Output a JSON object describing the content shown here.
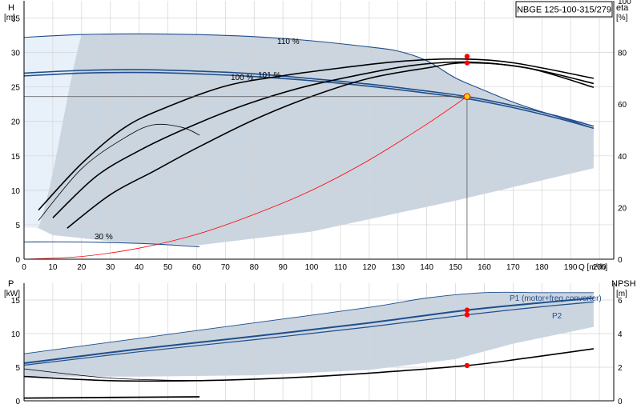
{
  "model": "NBGE 125-100-315/279",
  "chart_data": [
    {
      "type": "line",
      "panel": "head",
      "xlabel": "Q [m³/h]",
      "xlim": [
        0,
        205
      ],
      "xticks": [
        0,
        10,
        20,
        30,
        40,
        50,
        60,
        70,
        80,
        90,
        100,
        110,
        120,
        130,
        140,
        150,
        160,
        170,
        180,
        190,
        200
      ],
      "ylabel_left": "H",
      "ylabel_left_unit": "[m]",
      "ylim_left": [
        0,
        37.5
      ],
      "yticks_left": [
        0,
        5,
        10,
        15,
        20,
        25,
        30,
        35
      ],
      "ylabel_right": "eta",
      "ylabel_right_unit": "[%]",
      "ylim_right": [
        0,
        100
      ],
      "yticks_right": [
        0,
        20,
        40,
        60,
        80,
        100
      ],
      "grid": true,
      "series": [
        {
          "name": "110 %",
          "role": "head-curve",
          "x": [
            0,
            20,
            40,
            60,
            80,
            100,
            120,
            130,
            140,
            150,
            160,
            170,
            180,
            190,
            198
          ],
          "y": [
            32.2,
            32.6,
            32.7,
            32.6,
            32.3,
            31.7,
            30.8,
            30.2,
            28.8,
            26.3,
            24.5,
            22.8,
            21.4,
            20.1,
            19.0
          ]
        },
        {
          "name": "101 %",
          "role": "head-curve",
          "x": [
            0,
            20,
            40,
            60,
            80,
            100,
            120,
            140,
            154,
            170,
            185,
            198
          ],
          "y": [
            27.0,
            27.4,
            27.5,
            27.3,
            26.9,
            26.2,
            25.4,
            24.4,
            23.6,
            22.3,
            20.8,
            19.3
          ]
        },
        {
          "name": "100 %",
          "role": "head-curve",
          "x": [
            0,
            20,
            40,
            60,
            80,
            100,
            120,
            140,
            154,
            170,
            185,
            198
          ],
          "y": [
            26.6,
            27.0,
            27.1,
            26.9,
            26.5,
            25.9,
            25.1,
            24.1,
            23.3,
            22.0,
            20.5,
            19.0
          ]
        },
        {
          "name": "30 %",
          "role": "head-curve",
          "x": [
            0,
            20,
            40,
            50,
            61
          ],
          "y": [
            2.5,
            2.5,
            2.3,
            2.1,
            1.8
          ]
        },
        {
          "name": "",
          "role": "eta-curve",
          "x": [
            5,
            20,
            35,
            50,
            70,
            90,
            110,
            130,
            150,
            170,
            198
          ],
          "y": [
            19,
            37,
            51,
            59,
            67,
            71,
            74,
            76.5,
            77.5,
            76,
            70
          ]
        },
        {
          "name": "",
          "role": "eta-curve",
          "x": [
            10,
            25,
            40,
            55,
            75,
            95,
            115,
            135,
            154,
            175,
            198
          ],
          "y": [
            16,
            32,
            42,
            50,
            59,
            66,
            71,
            75,
            76.3,
            74,
            68
          ]
        },
        {
          "name": "",
          "role": "eta-curve",
          "x": [
            15,
            30,
            45,
            60,
            80,
            100,
            120,
            140,
            154,
            175,
            198
          ],
          "y": [
            12,
            25,
            34,
            43,
            54,
            63,
            70,
            74,
            76,
            74,
            66.5
          ]
        },
        {
          "name": "",
          "role": "eta-curve",
          "x": [
            5,
            20,
            35,
            45,
            55,
            61
          ],
          "y": [
            15,
            35,
            47,
            52,
            51,
            48
          ]
        },
        {
          "name": "",
          "role": "system-curve",
          "x": [
            0,
            20,
            40,
            60,
            80,
            100,
            120,
            140,
            154
          ],
          "y": [
            0.0,
            0.4,
            1.6,
            3.6,
            6.5,
            10.0,
            14.4,
            19.6,
            23.6
          ]
        }
      ],
      "duty_point": {
        "q": 154,
        "h": 23.6
      },
      "markers_eta": [
        {
          "q": 154,
          "eta": 78.5
        },
        {
          "q": 154,
          "eta": 76.0
        }
      ],
      "labels": [
        "110 %",
        "100 %",
        "101 %",
        "30 %"
      ]
    },
    {
      "type": "line",
      "panel": "power",
      "xlim": [
        0,
        205
      ],
      "ylabel_left": "P",
      "ylabel_left_unit": "[kW]",
      "ylim_left": [
        0,
        17.5
      ],
      "yticks_left": [
        0,
        5,
        10,
        15
      ],
      "ylabel_right": "NPSH",
      "ylabel_right_unit": "[m]",
      "ylim_right": [
        0,
        7
      ],
      "yticks_right": [
        0,
        2,
        4,
        6
      ],
      "grid": true,
      "series": [
        {
          "name": "P1 (motor+freq.converter)",
          "role": "power-curve",
          "x": [
            0,
            40,
            80,
            120,
            154,
            180,
            198
          ],
          "y": [
            5.6,
            7.7,
            9.6,
            11.6,
            13.5,
            14.6,
            15.3
          ]
        },
        {
          "name": "P2",
          "role": "power-curve",
          "x": [
            0,
            40,
            80,
            120,
            154,
            180,
            198
          ],
          "y": [
            5.3,
            7.3,
            9.1,
            11.0,
            12.8,
            14.0,
            14.7
          ]
        },
        {
          "name": "",
          "role": "power-curve-upper",
          "x": [
            0,
            40,
            80,
            120,
            140,
            160,
            180,
            198
          ],
          "y": [
            7.0,
            9.3,
            11.6,
            13.9,
            15.3,
            16.1,
            16.1,
            16.1
          ]
        },
        {
          "name": "",
          "role": "power-curve-30",
          "x": [
            0,
            30,
            61
          ],
          "y": [
            0.4,
            0.5,
            0.6
          ]
        },
        {
          "name": "",
          "role": "npsh-curve",
          "x": [
            0,
            30,
            60,
            90,
            120,
            154,
            175,
            198
          ],
          "y": [
            1.45,
            1.2,
            1.2,
            1.35,
            1.65,
            2.1,
            2.55,
            3.1
          ]
        },
        {
          "name": "",
          "role": "npsh-curve-2",
          "x": [
            0,
            30,
            60
          ],
          "y": [
            1.9,
            1.35,
            1.2
          ]
        }
      ],
      "markers_p": [
        {
          "q": 154,
          "p": 13.5
        },
        {
          "q": 154,
          "p": 12.8
        }
      ],
      "marker_npsh": {
        "q": 154,
        "npsh": 2.1
      }
    }
  ],
  "colors": {
    "envelope": "#cbd5e0",
    "grid": "#d4d4d4",
    "blue": "#1f4e8c",
    "red": "#ff0000",
    "duty": "#ffd400",
    "axis": "#000000"
  }
}
